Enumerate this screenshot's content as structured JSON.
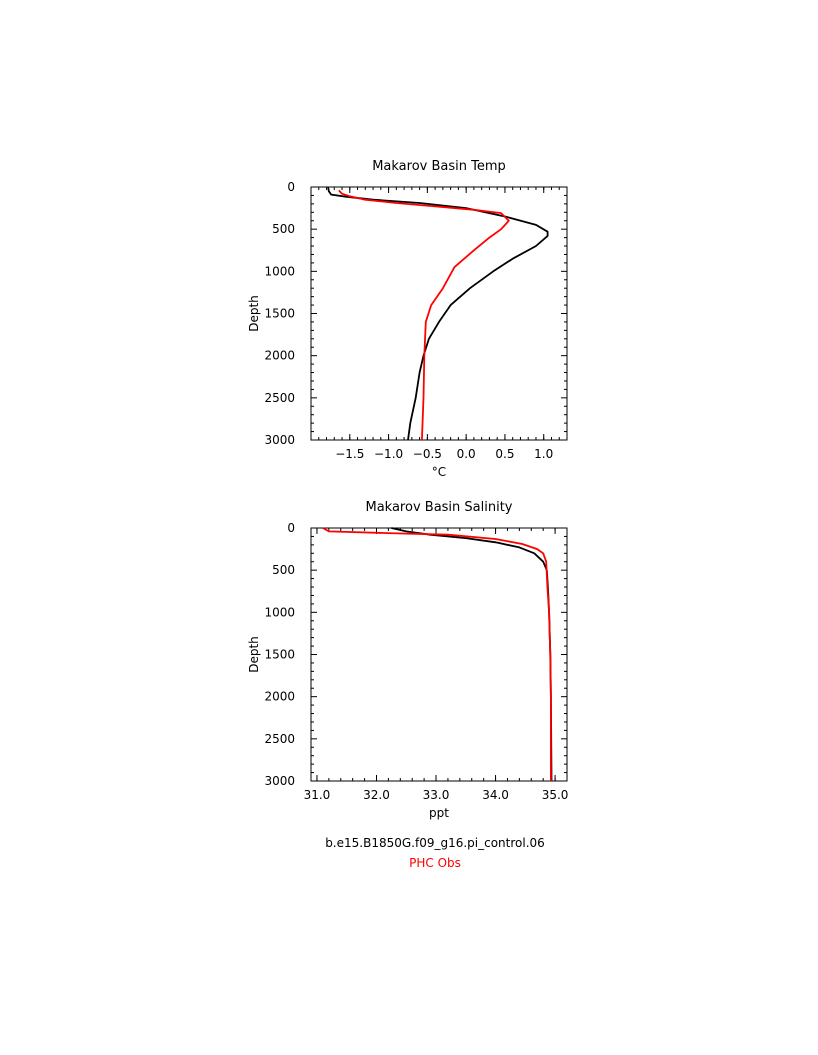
{
  "chart_data": [
    {
      "type": "line",
      "title": "Makarov Basin Temp",
      "xlabel": "°C",
      "ylabel": "Depth",
      "xlim": [
        -2.0,
        1.3
      ],
      "ylim": [
        3000,
        0
      ],
      "xticks": [
        -1.5,
        -1.0,
        -0.5,
        0.0,
        0.5,
        1.0
      ],
      "xtick_labels": [
        "−1.5",
        "−1.0",
        "−0.5",
        "0.0",
        "0.5",
        "1.0"
      ],
      "yticks": [
        0,
        500,
        1000,
        1500,
        2000,
        2500,
        3000
      ],
      "ytick_labels": [
        "0",
        "500",
        "1000",
        "1500",
        "2000",
        "2500",
        "3000"
      ],
      "series": [
        {
          "name": "b.e15.B1850G.f09_g16.pi_control.06",
          "color": "#000000",
          "points": [
            [
              -1.78,
              0
            ],
            [
              -1.77,
              50
            ],
            [
              -1.74,
              90
            ],
            [
              -1.55,
              115
            ],
            [
              -1.2,
              150
            ],
            [
              -0.6,
              190
            ],
            [
              0.0,
              250
            ],
            [
              0.5,
              350
            ],
            [
              0.9,
              450
            ],
            [
              1.05,
              530
            ],
            [
              1.05,
              580
            ],
            [
              0.9,
              700
            ],
            [
              0.6,
              850
            ],
            [
              0.35,
              1000
            ],
            [
              0.05,
              1200
            ],
            [
              -0.2,
              1400
            ],
            [
              -0.35,
              1600
            ],
            [
              -0.48,
              1800
            ],
            [
              -0.55,
              2000
            ],
            [
              -0.6,
              2200
            ],
            [
              -0.65,
              2500
            ],
            [
              -0.72,
              2800
            ],
            [
              -0.75,
              3000
            ]
          ]
        },
        {
          "name": "PHC Obs",
          "color": "#ff0000",
          "points": [
            [
              -1.64,
              40
            ],
            [
              -1.6,
              80
            ],
            [
              -1.5,
              110
            ],
            [
              -1.3,
              150
            ],
            [
              -0.9,
              190
            ],
            [
              -0.4,
              230
            ],
            [
              0.1,
              270
            ],
            [
              0.45,
              310
            ],
            [
              0.55,
              400
            ],
            [
              0.45,
              500
            ],
            [
              0.3,
              600
            ],
            [
              0.1,
              750
            ],
            [
              -0.15,
              950
            ],
            [
              -0.3,
              1200
            ],
            [
              -0.45,
              1400
            ],
            [
              -0.52,
              1600
            ],
            [
              -0.54,
              2000
            ],
            [
              -0.55,
              2500
            ],
            [
              -0.57,
              3000
            ]
          ]
        }
      ]
    },
    {
      "type": "line",
      "title": "Makarov Basin Salinity",
      "xlabel": "ppt",
      "ylabel": "Depth",
      "xlim": [
        30.9,
        35.2
      ],
      "ylim": [
        3000,
        0
      ],
      "xticks": [
        31.0,
        32.0,
        33.0,
        34.0,
        35.0
      ],
      "xtick_labels": [
        "31.0",
        "32.0",
        "33.0",
        "34.0",
        "35.0"
      ],
      "yticks": [
        0,
        500,
        1000,
        1500,
        2000,
        2500,
        3000
      ],
      "ytick_labels": [
        "0",
        "500",
        "1000",
        "1500",
        "2000",
        "2500",
        "3000"
      ],
      "series": [
        {
          "name": "b.e15.B1850G.f09_g16.pi_control.06",
          "color": "#000000",
          "points": [
            [
              32.25,
              0
            ],
            [
              32.5,
              40
            ],
            [
              32.9,
              80
            ],
            [
              33.5,
              120
            ],
            [
              34.0,
              170
            ],
            [
              34.4,
              230
            ],
            [
              34.65,
              300
            ],
            [
              34.8,
              400
            ],
            [
              34.86,
              500
            ],
            [
              34.88,
              700
            ],
            [
              34.9,
              1000
            ],
            [
              34.92,
              1500
            ],
            [
              34.93,
              2000
            ],
            [
              34.94,
              3000
            ]
          ]
        },
        {
          "name": "PHC Obs",
          "color": "#ff0000",
          "points": [
            [
              31.1,
              0
            ],
            [
              31.2,
              40
            ],
            [
              32.2,
              60
            ],
            [
              33.2,
              80
            ],
            [
              34.0,
              130
            ],
            [
              34.45,
              190
            ],
            [
              34.7,
              250
            ],
            [
              34.8,
              300
            ],
            [
              34.85,
              400
            ],
            [
              34.87,
              700
            ],
            [
              34.9,
              1000
            ],
            [
              34.92,
              1500
            ],
            [
              34.93,
              2000
            ],
            [
              34.93,
              3000
            ]
          ]
        }
      ]
    }
  ],
  "legend": {
    "model_label": "b.e15.B1850G.f09_g16.pi_control.06",
    "model_color": "#000000",
    "obs_label": "PHC Obs",
    "obs_color": "#ff0000"
  }
}
